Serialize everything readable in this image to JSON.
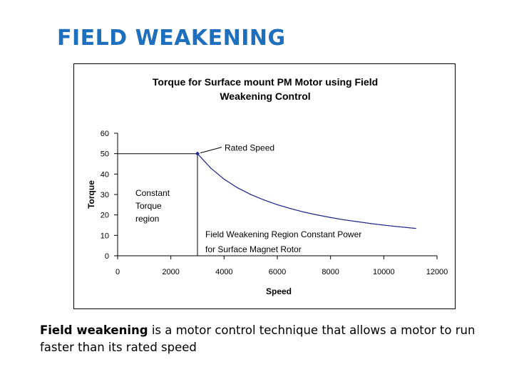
{
  "slide": {
    "title": "FIELD WEAKENING",
    "title_color": "#1f6fbf",
    "caption_bold": "Field weakening",
    "caption_rest": " is a motor control technique that allows a motor to run faster than its rated speed"
  },
  "chart_data": {
    "type": "line",
    "title_lines": [
      "Torque for Surface mount PM Motor using Field",
      "Weakening Control"
    ],
    "xlabel": "Speed",
    "ylabel": "Torque",
    "xlim": [
      0,
      12000
    ],
    "ylim": [
      0,
      60
    ],
    "xticks": [
      0,
      2000,
      4000,
      6000,
      8000,
      10000,
      12000
    ],
    "yticks": [
      0,
      10,
      20,
      30,
      40,
      50,
      60
    ],
    "grid": false,
    "series": [
      {
        "name": "Torque",
        "x": [
          0,
          3000,
          3500,
          4000,
          4500,
          5000,
          5500,
          6000,
          6500,
          7000,
          7500,
          8000,
          8500,
          9000,
          9500,
          10000,
          10500,
          11200
        ],
        "values": [
          50,
          50,
          42.9,
          37.5,
          33.3,
          30,
          27.3,
          25,
          23.1,
          21.4,
          20,
          18.75,
          17.6,
          16.7,
          15.8,
          15,
          14.3,
          13.4
        ]
      }
    ],
    "rated_speed_marker": {
      "x": 3000,
      "y": 50
    },
    "annotations": {
      "rated_speed": "Rated Speed",
      "constant_torque": [
        "Constant",
        "Torque",
        "region"
      ],
      "field_weakening": [
        "Field Weakening Region Constant Power",
        "for Surface Magnet Rotor"
      ]
    },
    "line_color": "#1f2a9a"
  }
}
